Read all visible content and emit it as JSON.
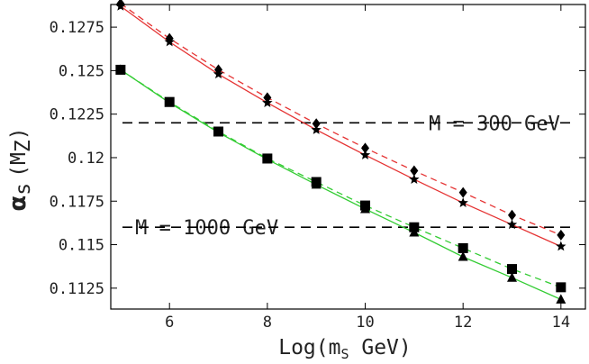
{
  "chart_data": {
    "type": "line",
    "xlabel": "Log(m",
    "xlabel_sub": "S",
    "xlabel_suffix": " GeV)",
    "ylabel_symbol": "α",
    "ylabel_sub": "s",
    "ylabel_arg": "(M",
    "ylabel_arg_sub": "Z",
    "ylabel_close": ")",
    "xlim": [
      4.8,
      14.5
    ],
    "ylim": [
      0.1113,
      0.1288
    ],
    "x_ticks": [
      6,
      8,
      10,
      12,
      14
    ],
    "x_tick_labels": [
      "6",
      "8",
      "10",
      "12",
      "14"
    ],
    "y_ticks": [
      0.1125,
      0.115,
      0.1175,
      0.12,
      0.1225,
      0.125,
      0.1275
    ],
    "y_tick_labels": [
      "0.1125",
      "0.115",
      "0.1175",
      "0.12",
      "0.1225",
      "0.125",
      "0.1275"
    ],
    "x": [
      5,
      6,
      7,
      8,
      9,
      10,
      11,
      12,
      13,
      14
    ],
    "series": [
      {
        "marker": "diamond",
        "color": "#e53333",
        "dash": true,
        "values": [
          0.12885,
          0.12685,
          0.12505,
          0.12345,
          0.12195,
          0.12055,
          0.11925,
          0.118,
          0.1167,
          0.11555
        ]
      },
      {
        "marker": "star",
        "color": "#e53333",
        "dash": false,
        "values": [
          0.1287,
          0.12665,
          0.1248,
          0.12315,
          0.1216,
          0.12015,
          0.11875,
          0.1174,
          0.11615,
          0.1149
        ]
      },
      {
        "marker": "square",
        "color": "#33cc33",
        "dash": true,
        "values": [
          0.12505,
          0.1232,
          0.1215,
          0.11995,
          0.1186,
          0.11725,
          0.116,
          0.1148,
          0.1136,
          0.11255
        ]
      },
      {
        "marker": "triangle",
        "color": "#33cc33",
        "dash": false,
        "values": [
          0.12505,
          0.12315,
          0.12145,
          0.1199,
          0.11845,
          0.11705,
          0.1157,
          0.1143,
          0.1131,
          0.11185
        ]
      }
    ],
    "hlines": [
      {
        "y": 0.122,
        "label": "M = 300 GeV",
        "label_x": 11.3
      },
      {
        "y": 0.116,
        "label": "M = 1000 GeV",
        "label_x": 5.3
      }
    ],
    "grid": false
  }
}
